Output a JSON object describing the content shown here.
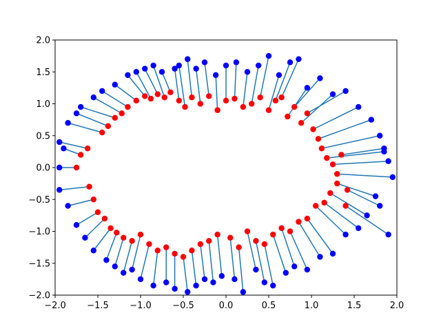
{
  "chart_data": {
    "type": "scatter",
    "title": "",
    "xlabel": "",
    "ylabel": "",
    "xlim": [
      -2.0,
      2.0
    ],
    "ylim": [
      -2.0,
      2.0
    ],
    "xticks": [
      -2.0,
      -1.5,
      -1.0,
      -0.5,
      0.0,
      0.5,
      1.0,
      1.5,
      2.0
    ],
    "yticks": [
      -2.0,
      -1.5,
      -1.0,
      -0.5,
      0.0,
      0.5,
      1.0,
      1.5,
      2.0
    ],
    "xtick_labels": [
      "−2.0",
      "−1.5",
      "−1.0",
      "−0.5",
      "0.0",
      "0.5",
      "1.0",
      "1.5",
      "2.0"
    ],
    "ytick_labels": [
      "−2.0",
      "−1.5",
      "−1.0",
      "−0.5",
      "0.0",
      "0.5",
      "1.0",
      "1.5",
      "2.0"
    ],
    "grid": false,
    "legend": "none",
    "colors": {
      "red_points": "#ff0000",
      "blue_points": "#0000ff",
      "lines": "#1f77b4"
    },
    "description": "Each red point lies roughly on a ring of radius ~1; a line segment joins it to a corresponding blue point at the same angle pushed radially outward. Series are listed as paired arrays (red[i] connects to blue[i]).",
    "series": [
      {
        "name": "",
        "color": "#ff0000",
        "x": [
          -1.62,
          -1.45,
          -1.38,
          -1.3,
          -1.22,
          -1.15,
          -1.05,
          -0.95,
          -0.88,
          -0.8,
          -0.72,
          -0.65,
          -0.55,
          -0.48,
          -0.4,
          -0.3,
          -0.2,
          -0.1,
          0.0,
          0.1,
          0.2,
          0.3,
          0.4,
          0.5,
          0.58,
          0.65,
          0.72,
          0.8,
          0.88,
          0.95,
          1.02,
          1.08,
          1.12,
          1.18,
          1.25,
          1.3,
          -1.6,
          -1.55,
          -1.5,
          -1.42,
          -1.35,
          -1.28,
          -1.2,
          -1.1,
          -1.0,
          -0.9,
          -0.8,
          -0.7,
          -0.6,
          -0.5,
          -0.4,
          -0.3,
          -0.2,
          -0.1,
          0.05,
          0.15,
          0.25,
          0.35,
          0.45,
          0.55,
          0.65,
          0.75,
          0.85,
          0.95,
          1.05,
          1.15,
          1.22,
          1.3,
          1.35,
          -1.75,
          1.4,
          -1.7,
          1.42
        ],
        "y": [
          0.3,
          0.55,
          0.65,
          0.78,
          0.85,
          0.95,
          1.05,
          1.12,
          1.08,
          1.15,
          1.1,
          1.18,
          1.05,
          0.95,
          1.1,
          1.0,
          1.12,
          0.9,
          1.05,
          1.08,
          0.95,
          1.0,
          1.1,
          0.9,
          1.05,
          1.1,
          0.8,
          0.95,
          0.7,
          0.85,
          0.6,
          0.45,
          0.3,
          0.15,
          0.05,
          -0.1,
          -0.3,
          -0.5,
          -0.7,
          -0.8,
          -0.95,
          -1.02,
          -1.1,
          -1.15,
          -1.05,
          -1.2,
          -1.3,
          -1.25,
          -1.35,
          -1.4,
          -1.3,
          -1.2,
          -1.15,
          -1.05,
          -1.1,
          -1.25,
          -1.0,
          -1.15,
          -1.2,
          -1.05,
          -0.95,
          -1.0,
          -0.85,
          -0.8,
          -0.6,
          -0.55,
          -0.4,
          -0.25,
          0.2,
          0.0,
          -0.6,
          0.2,
          -0.35
        ]
      },
      {
        "name": "",
        "color": "#0000ff",
        "x": [
          -1.95,
          -1.85,
          -1.75,
          -1.7,
          -1.55,
          -1.45,
          -1.3,
          -1.15,
          -1.05,
          -0.95,
          -0.85,
          -0.75,
          -0.6,
          -0.55,
          -0.45,
          -0.35,
          -0.25,
          -0.12,
          0.0,
          0.12,
          0.25,
          0.38,
          0.5,
          0.62,
          0.75,
          0.85,
          0.95,
          1.1,
          1.25,
          1.4,
          1.55,
          1.7,
          1.8,
          1.85,
          1.9,
          1.95,
          -1.95,
          -1.85,
          -1.75,
          -1.65,
          -1.55,
          -1.4,
          -1.3,
          -1.2,
          -1.1,
          -1.0,
          -0.85,
          -0.7,
          -0.6,
          -0.45,
          -0.35,
          -0.25,
          -0.15,
          -0.05,
          0.1,
          0.2,
          0.35,
          0.45,
          0.55,
          0.7,
          0.8,
          0.95,
          1.1,
          1.25,
          1.4,
          1.55,
          1.65,
          1.75,
          1.85,
          -1.95,
          1.9,
          -1.9,
          1.8
        ],
        "y": [
          0.4,
          0.7,
          0.85,
          0.95,
          1.1,
          1.2,
          1.3,
          1.45,
          1.5,
          1.55,
          1.6,
          1.5,
          1.55,
          1.6,
          1.7,
          1.55,
          1.65,
          1.45,
          1.6,
          1.65,
          1.5,
          1.6,
          1.75,
          1.45,
          1.65,
          1.7,
          1.25,
          1.4,
          1.15,
          1.2,
          0.95,
          0.75,
          0.5,
          0.25,
          0.1,
          -0.15,
          -0.35,
          -0.6,
          -0.9,
          -1.1,
          -1.3,
          -1.45,
          -1.55,
          -1.65,
          -1.6,
          -1.75,
          -1.85,
          -1.8,
          -1.9,
          -1.95,
          -1.85,
          -1.75,
          -1.8,
          -1.7,
          -1.75,
          -1.95,
          -1.6,
          -1.8,
          -1.85,
          -1.65,
          -1.55,
          -1.6,
          -1.4,
          -1.35,
          -1.05,
          -0.95,
          -0.75,
          -0.45,
          0.3,
          0.0,
          -1.05,
          0.3,
          -0.6
        ]
      }
    ]
  }
}
